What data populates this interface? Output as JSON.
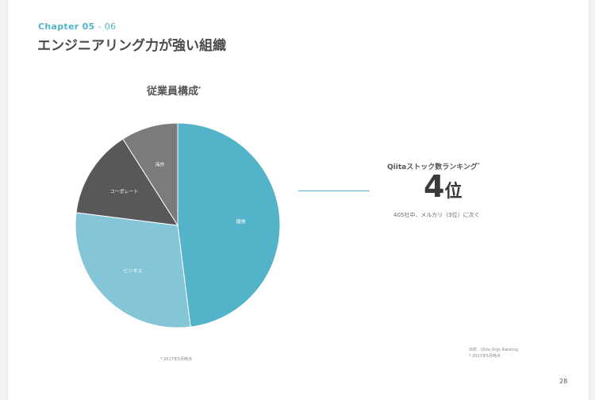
{
  "header": {
    "chapter": "Chapter 05",
    "chapter_sub": "- 06",
    "title": "エンジニアリング力が強い組織"
  },
  "pie": {
    "title": "従業員構成",
    "title_mark": "*",
    "footnote": "* 2017年5月時点"
  },
  "chart_data": {
    "type": "pie",
    "title": "従業員構成*",
    "slices": [
      {
        "label": "開発",
        "value": 48,
        "color": "#52b3c9"
      },
      {
        "label": "ビジネス",
        "value": 29,
        "color": "#84c6d8"
      },
      {
        "label": "コーポレート",
        "value": 14,
        "color": "#58585b"
      },
      {
        "label": "海外",
        "value": 9,
        "color": "#7b7b7d"
      }
    ]
  },
  "ranking": {
    "title": "Qiitaストック数ランキング",
    "title_mark": "*",
    "value": "4",
    "unit": "位",
    "note": "405社中、メルカリ（3位）に次ぐ"
  },
  "source": {
    "line1": "出所：Qiita Orgs Ranking",
    "line2": "* 2017年5月時点"
  },
  "page_number": "28"
}
